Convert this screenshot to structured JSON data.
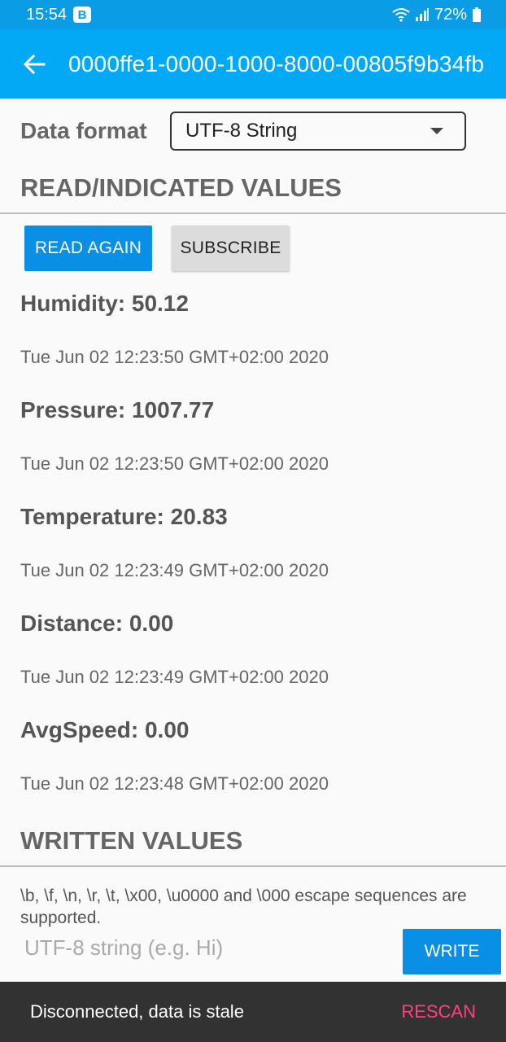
{
  "status_bar": {
    "time": "15:54",
    "badge": "B",
    "battery": "72%",
    "wifi_icon": "wifi-icon",
    "signal_icon": "signal-icon",
    "battery_icon": "battery-icon"
  },
  "app_bar": {
    "back_icon": "arrow-left-icon",
    "title": "0000ffe1-0000-1000-8000-00805f9b34fb"
  },
  "data_format": {
    "label": "Data format",
    "selected": "UTF-8 String"
  },
  "read_section": {
    "title": "READ/INDICATED VALUES",
    "read_again_label": "READ AGAIN",
    "subscribe_label": "SUBSCRIBE",
    "values": [
      {
        "text": "Humidity: 50.12",
        "time": "Tue Jun 02 12:23:50 GMT+02:00 2020"
      },
      {
        "text": "Pressure: 1007.77",
        "time": "Tue Jun 02 12:23:50 GMT+02:00 2020"
      },
      {
        "text": "Temperature: 20.83",
        "time": "Tue Jun 02 12:23:49 GMT+02:00 2020"
      },
      {
        "text": "Distance: 0.00",
        "time": "Tue Jun 02 12:23:49 GMT+02:00 2020"
      },
      {
        "text": "AvgSpeed: 0.00",
        "time": "Tue Jun 02 12:23:48 GMT+02:00 2020"
      }
    ]
  },
  "written_section": {
    "title": "WRITTEN VALUES",
    "escape_info": "\\b, \\f, \\n, \\r, \\t, \\x00, \\u0000 and \\000 escape sequences are supported.",
    "input_placeholder": "UTF-8 string (e.g. Hi)",
    "write_label": "WRITE"
  },
  "snackbar": {
    "message": "Disconnected, data is stale",
    "action": "RESCAN"
  },
  "colors": {
    "accent": "#03a9f4",
    "button": "#0a8fe6",
    "snackbar_action": "#ff4081"
  }
}
